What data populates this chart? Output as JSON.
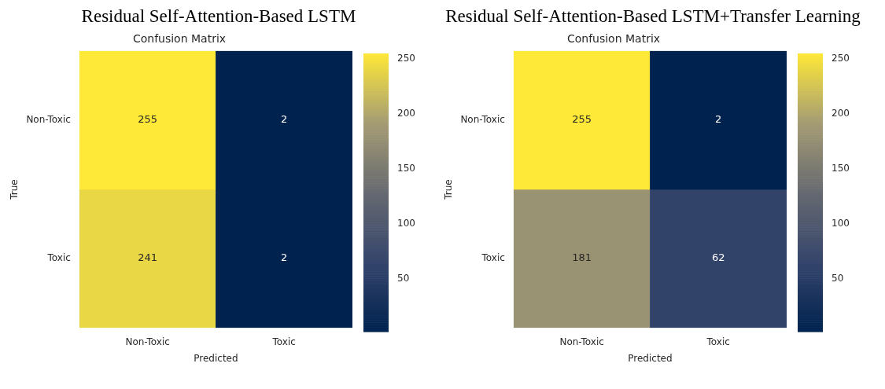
{
  "chart_data": [
    {
      "type": "heatmap",
      "title": "Residual Self-Attention-Based LSTM",
      "subtitle": "Confusion Matrix",
      "xlabel": "Predicted",
      "ylabel": "True",
      "categories": [
        "Non-Toxic",
        "Toxic"
      ],
      "y_categories": [
        "Non-Toxic",
        "Toxic"
      ],
      "cells": [
        [
          255,
          2
        ],
        [
          241,
          2
        ]
      ],
      "clim": [
        2,
        255
      ],
      "cticks": [
        50,
        100,
        150,
        200,
        250
      ],
      "data_labels": true
    },
    {
      "type": "heatmap",
      "title": "Residual Self-Attention-Based LSTM+Transfer Learning",
      "subtitle": "Confusion Matrix",
      "xlabel": "Predicted",
      "ylabel": "True",
      "categories": [
        "Non-Toxic",
        "Toxic"
      ],
      "y_categories": [
        "Non-Toxic",
        "Toxic"
      ],
      "cells": [
        [
          255,
          2
        ],
        [
          181,
          62
        ]
      ],
      "clim": [
        2,
        255
      ],
      "cticks": [
        50,
        100,
        150,
        200,
        250
      ],
      "data_labels": true
    }
  ]
}
